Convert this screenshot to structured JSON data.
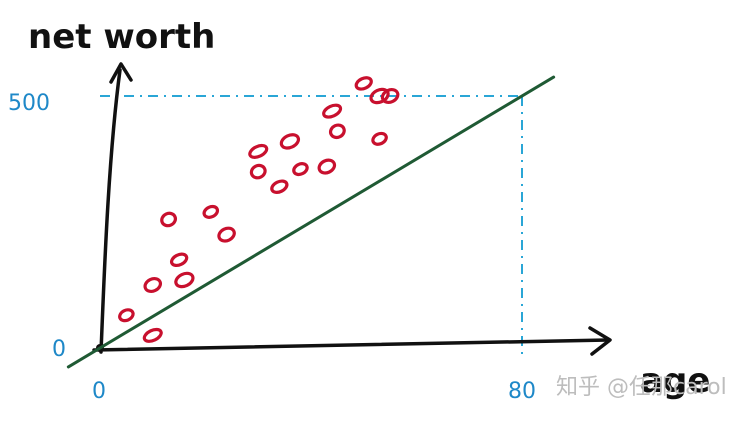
{
  "chart_data": {
    "type": "scatter",
    "xlabel": "age",
    "ylabel": "net worth",
    "x_ticks": [
      "0",
      "80"
    ],
    "y_ticks": [
      "0",
      "500"
    ],
    "xlim": [
      0,
      80
    ],
    "ylim": [
      0,
      500
    ],
    "reference_lines": {
      "x": 80,
      "y": 500
    },
    "trend_line": {
      "x": [
        0,
        80
      ],
      "y": [
        0,
        500
      ]
    },
    "points": [
      {
        "x": 5,
        "y": 65
      },
      {
        "x": 10,
        "y": 125
      },
      {
        "x": 10,
        "y": 25
      },
      {
        "x": 13,
        "y": 255
      },
      {
        "x": 15,
        "y": 175
      },
      {
        "x": 16,
        "y": 135
      },
      {
        "x": 21,
        "y": 270
      },
      {
        "x": 24,
        "y": 225
      },
      {
        "x": 30,
        "y": 390
      },
      {
        "x": 30,
        "y": 350
      },
      {
        "x": 34,
        "y": 320
      },
      {
        "x": 36,
        "y": 410
      },
      {
        "x": 38,
        "y": 355
      },
      {
        "x": 43,
        "y": 360
      },
      {
        "x": 44,
        "y": 470
      },
      {
        "x": 45,
        "y": 430
      },
      {
        "x": 50,
        "y": 525
      },
      {
        "x": 53,
        "y": 500
      },
      {
        "x": 53,
        "y": 415
      },
      {
        "x": 55,
        "y": 500
      }
    ]
  },
  "watermark": {
    "text": "知乎 @任那carol"
  }
}
